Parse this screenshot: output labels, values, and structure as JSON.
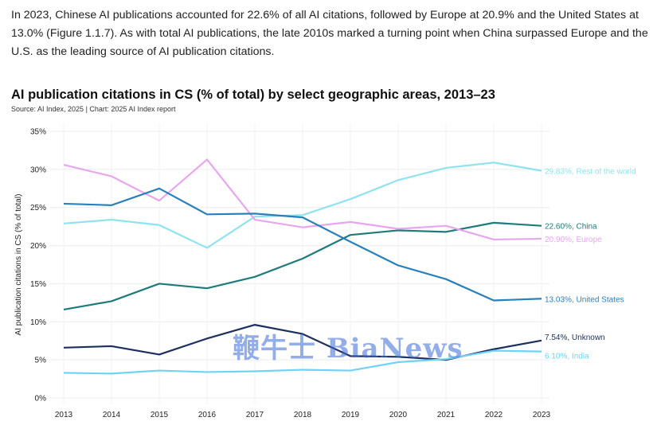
{
  "intro_text": "In 2023, Chinese AI publications accounted for 22.6% of all AI citations, followed by Europe at 20.9% and the United States at 13.0% (Figure 1.1.7). As with total AI publications, the late 2010s marked a turning point when China surpassed Europe and the U.S. as the leading source of AI publication citations.",
  "watermark": "鞭牛士 BiaNews",
  "chart_data": {
    "type": "line",
    "title": "AI publication citations in CS (% of total) by select geographic areas, 2013–23",
    "subtitle": "Source: AI Index, 2025 | Chart: 2025 AI Index report",
    "xlabel": "",
    "ylabel": "AI publication citations in CS (% of total)",
    "ylim": [
      0,
      35
    ],
    "grid": true,
    "x": [
      2013,
      2014,
      2015,
      2016,
      2017,
      2018,
      2019,
      2020,
      2021,
      2022,
      2023
    ],
    "x_tick_labels": [
      "2013",
      "2014",
      "2015",
      "2016",
      "2017",
      "2018",
      "2019",
      "2020",
      "2021",
      "2022",
      "2023"
    ],
    "y_ticks": [
      0,
      5,
      10,
      15,
      20,
      25,
      30,
      35
    ],
    "y_tick_labels": [
      "0%",
      "5%",
      "10%",
      "15%",
      "20%",
      "25%",
      "30%",
      "35%"
    ],
    "series": [
      {
        "name": "Rest of the world",
        "end_label": "29.83%, Rest of the world",
        "color": "#8fe3ef",
        "values": [
          22.9,
          23.4,
          22.7,
          19.7,
          23.8,
          24.0,
          26.1,
          28.6,
          30.2,
          30.9,
          29.83
        ]
      },
      {
        "name": "China",
        "end_label": "22.60%, China",
        "color": "#1f7b7b",
        "values": [
          11.6,
          12.7,
          15.0,
          14.4,
          15.9,
          18.3,
          21.4,
          22.0,
          21.8,
          23.0,
          22.6
        ]
      },
      {
        "name": "Europe",
        "end_label": "20.90%, Europe",
        "color": "#e8a6ee",
        "values": [
          30.6,
          29.1,
          25.9,
          31.3,
          23.4,
          22.4,
          23.1,
          22.2,
          22.6,
          20.8,
          20.9
        ]
      },
      {
        "name": "United States",
        "end_label": "13.03%, United States",
        "color": "#2a80b9",
        "values": [
          25.5,
          25.3,
          27.5,
          24.1,
          24.2,
          23.7,
          20.5,
          17.4,
          15.6,
          12.8,
          13.03
        ]
      },
      {
        "name": "Unknown",
        "end_label": "7.54%, Unknown",
        "color": "#1c2f5e",
        "values": [
          6.6,
          6.8,
          5.7,
          7.8,
          9.6,
          8.4,
          5.5,
          5.4,
          5.0,
          6.4,
          7.54
        ]
      },
      {
        "name": "India",
        "end_label": "6.10%, India",
        "color": "#6fd3f5",
        "values": [
          3.3,
          3.2,
          3.6,
          3.4,
          3.5,
          3.7,
          3.6,
          4.7,
          5.1,
          6.2,
          6.1
        ]
      }
    ]
  }
}
